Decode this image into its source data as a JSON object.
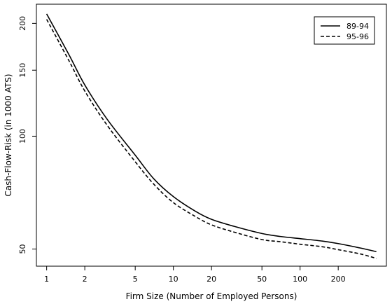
{
  "chart_data": {
    "type": "line",
    "xlabel": "Firm Size (Number of Employed Persons)",
    "ylabel": "Cash-Flow-Risk (in 1000 ATS)",
    "x_scale": "log",
    "y_scale": "log",
    "xlim": [
      0.83,
      480
    ],
    "ylim": [
      45,
      225
    ],
    "x_ticks": [
      1,
      2,
      5,
      10,
      20,
      50,
      100,
      200
    ],
    "x_tick_labels": [
      "1",
      "2",
      "5",
      "10",
      "20",
      "50",
      "100",
      "200"
    ],
    "y_ticks": [
      50,
      100,
      150,
      200
    ],
    "y_tick_labels": [
      "50",
      "100",
      "150",
      "200"
    ],
    "legend_position": "top-right",
    "series": [
      {
        "name": "89-94",
        "style": "solid",
        "x": [
          1,
          1.5,
          2,
          3,
          5,
          7,
          10,
          15,
          20,
          30,
          50,
          70,
          100,
          150,
          200,
          300,
          400
        ],
        "y": [
          212,
          165,
          137,
          111,
          89,
          77,
          69,
          63,
          60,
          57.5,
          55,
          54,
          53.3,
          52.5,
          51.7,
          50.3,
          49.2
        ]
      },
      {
        "name": "95-96",
        "style": "dashed",
        "x": [
          1,
          1.5,
          2,
          3,
          5,
          7,
          10,
          15,
          20,
          30,
          50,
          70,
          100,
          150,
          200,
          300,
          400
        ],
        "y": [
          205,
          159,
          132,
          107,
          85.5,
          74.5,
          66.5,
          61,
          58,
          55.5,
          53,
          52.3,
          51.5,
          50.7,
          49.8,
          48.5,
          47.2
        ]
      }
    ]
  }
}
